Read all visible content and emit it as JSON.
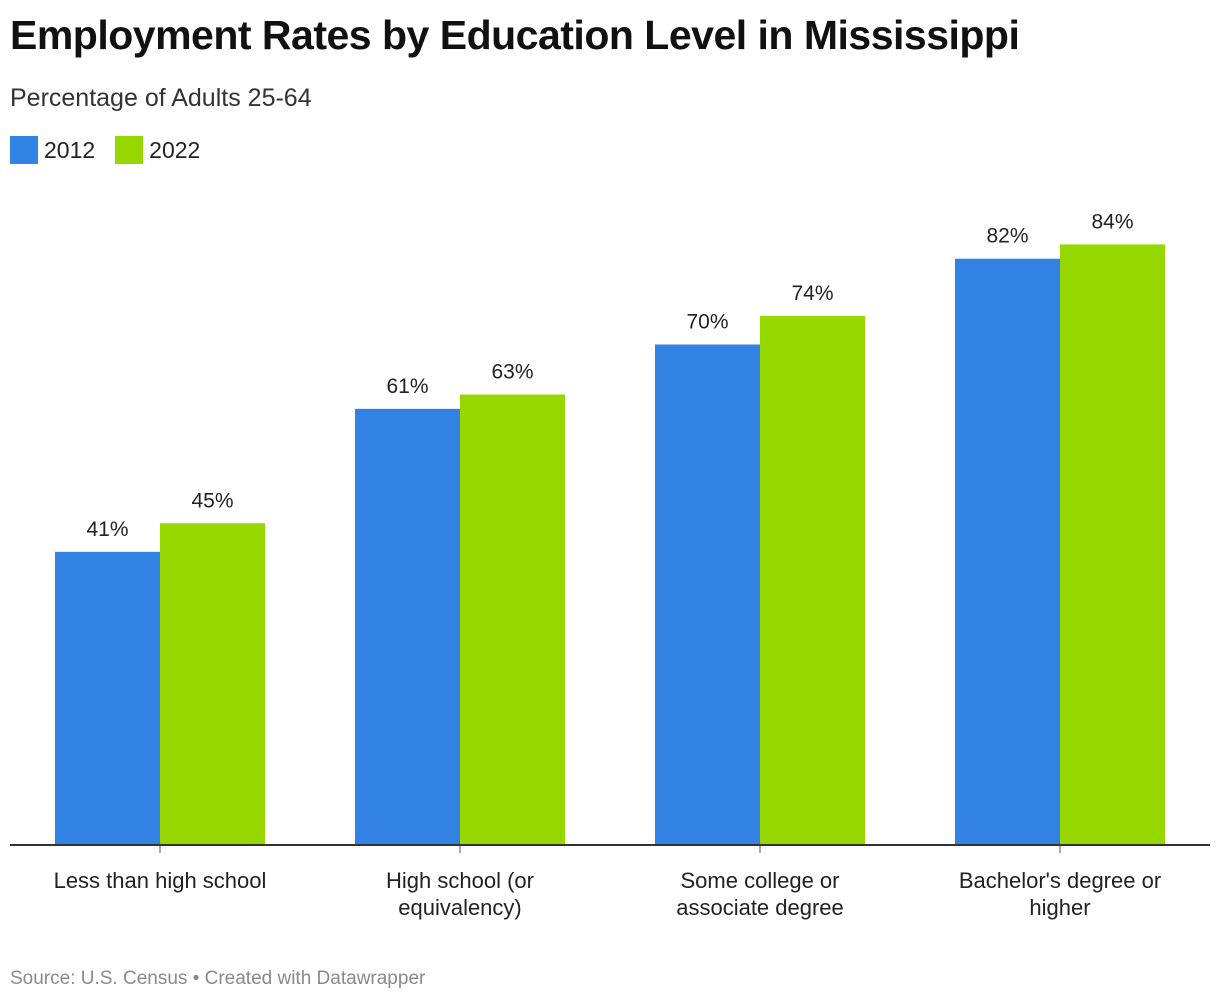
{
  "title": "Employment Rates by Education Level in Mississippi",
  "subtitle": "Percentage of Adults 25-64",
  "source": "Source: U.S. Census • Created with Datawrapper",
  "colors": {
    "series_2012": "#3182e3",
    "series_2022": "#97d700",
    "baseline": "#333333"
  },
  "legend": [
    {
      "label": "2012",
      "color": "#3182e3"
    },
    {
      "label": "2022",
      "color": "#97d700"
    }
  ],
  "chart_data": {
    "type": "bar",
    "title": "Employment Rates by Education Level in Mississippi",
    "subtitle": "Percentage of Adults 25-64",
    "categories": [
      "Less than high school",
      "High school (or equivalency)",
      "Some college or associate degree",
      "Bachelor's degree or higher"
    ],
    "category_lines": [
      [
        "Less than high school"
      ],
      [
        "High school (or",
        "equivalency)"
      ],
      [
        "Some college or",
        "associate degree"
      ],
      [
        "Bachelor's degree or",
        "higher"
      ]
    ],
    "series": [
      {
        "name": "2012",
        "values": [
          41,
          61,
          70,
          82
        ],
        "labels": [
          "41%",
          "61%",
          "70%",
          "82%"
        ]
      },
      {
        "name": "2022",
        "values": [
          45,
          63,
          74,
          84
        ],
        "labels": [
          "45%",
          "63%",
          "74%",
          "84%"
        ]
      }
    ],
    "xlabel": "",
    "ylabel": "",
    "ylim": [
      0,
      84
    ],
    "grid": false,
    "legend_position": "top-left"
  }
}
